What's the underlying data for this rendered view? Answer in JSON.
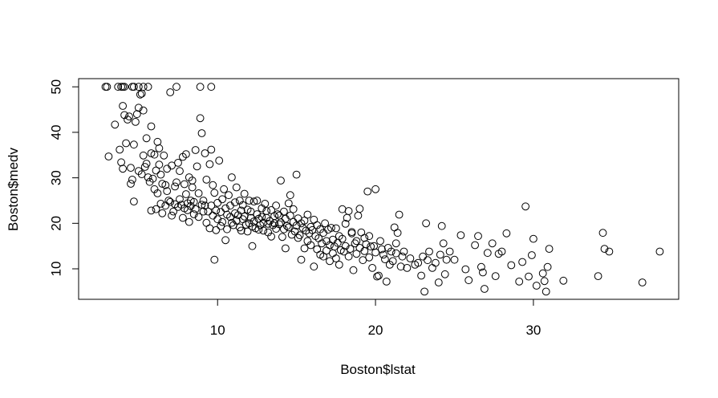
{
  "chart_data": {
    "type": "scatter",
    "title": "",
    "xlabel": "Boston$lstat",
    "ylabel": "Boston$medv",
    "xlim": [
      1.2,
      39.2
    ],
    "ylim": [
      3.3,
      51.8
    ],
    "x_ticks": [
      10,
      20,
      30
    ],
    "y_ticks": [
      10,
      20,
      30,
      40,
      50
    ],
    "grid": false,
    "legend": "none",
    "marker": "open-circle",
    "color": "#000000",
    "points": [
      [
        2.9,
        50
      ],
      [
        3.0,
        50
      ],
      [
        3.7,
        50
      ],
      [
        3.9,
        50
      ],
      [
        4.0,
        50
      ],
      [
        4.1,
        50
      ],
      [
        4.6,
        50
      ],
      [
        4.7,
        50
      ],
      [
        5.0,
        50
      ],
      [
        5.3,
        50
      ],
      [
        5.6,
        50
      ],
      [
        7.4,
        50
      ],
      [
        8.9,
        50
      ],
      [
        9.6,
        50
      ],
      [
        3.1,
        34.7
      ],
      [
        3.5,
        41.7
      ],
      [
        3.8,
        36.2
      ],
      [
        3.9,
        33.4
      ],
      [
        4.0,
        32.0
      ],
      [
        4.0,
        45.8
      ],
      [
        4.1,
        43.8
      ],
      [
        4.2,
        37.6
      ],
      [
        4.3,
        42.8
      ],
      [
        4.4,
        43.5
      ],
      [
        4.5,
        28.7
      ],
      [
        4.5,
        32.2
      ],
      [
        4.6,
        29.6
      ],
      [
        4.7,
        37.3
      ],
      [
        4.7,
        24.8
      ],
      [
        4.8,
        42.3
      ],
      [
        4.9,
        44.0
      ],
      [
        5.0,
        31.5
      ],
      [
        5.0,
        45.4
      ],
      [
        5.1,
        48.3
      ],
      [
        5.2,
        48.5
      ],
      [
        5.2,
        30.8
      ],
      [
        5.3,
        44.8
      ],
      [
        5.3,
        34.9
      ],
      [
        5.4,
        32.4
      ],
      [
        5.5,
        33.1
      ],
      [
        5.5,
        38.7
      ],
      [
        5.6,
        30.1
      ],
      [
        5.7,
        29.1
      ],
      [
        5.8,
        41.3
      ],
      [
        5.8,
        22.8
      ],
      [
        5.8,
        35.4
      ],
      [
        5.9,
        29.8
      ],
      [
        6.0,
        27.5
      ],
      [
        6.0,
        35.1
      ],
      [
        6.1,
        31.6
      ],
      [
        6.1,
        23.1
      ],
      [
        6.2,
        26.6
      ],
      [
        6.2,
        37.9
      ],
      [
        6.3,
        36.5
      ],
      [
        6.3,
        32.9
      ],
      [
        6.4,
        24.3
      ],
      [
        6.4,
        30.7
      ],
      [
        6.5,
        28.7
      ],
      [
        6.5,
        22.2
      ],
      [
        6.6,
        34.9
      ],
      [
        6.7,
        28.4
      ],
      [
        6.7,
        23.9
      ],
      [
        6.8,
        27.1
      ],
      [
        6.8,
        32.0
      ],
      [
        6.9,
        25.0
      ],
      [
        7.0,
        24.7
      ],
      [
        7.0,
        48.8
      ],
      [
        7.1,
        32.7
      ],
      [
        7.1,
        21.7
      ],
      [
        7.2,
        22.6
      ],
      [
        7.3,
        28.1
      ],
      [
        7.3,
        24.2
      ],
      [
        7.4,
        29.0
      ],
      [
        7.5,
        23.6
      ],
      [
        7.5,
        33.3
      ],
      [
        7.6,
        25.3
      ],
      [
        7.6,
        31.5
      ],
      [
        7.7,
        24.1
      ],
      [
        7.8,
        21.2
      ],
      [
        7.8,
        34.6
      ],
      [
        7.9,
        28.6
      ],
      [
        7.9,
        23.3
      ],
      [
        8.0,
        35.2
      ],
      [
        8.0,
        26.4
      ],
      [
        8.1,
        22.9
      ],
      [
        8.1,
        24.4
      ],
      [
        8.2,
        20.3
      ],
      [
        8.2,
        30.1
      ],
      [
        8.3,
        23.8
      ],
      [
        8.3,
        25.0
      ],
      [
        8.4,
        27.9
      ],
      [
        8.4,
        29.4
      ],
      [
        8.5,
        22.0
      ],
      [
        8.5,
        24.7
      ],
      [
        8.6,
        36.1
      ],
      [
        8.6,
        23.1
      ],
      [
        8.7,
        32.5
      ],
      [
        8.8,
        26.6
      ],
      [
        8.8,
        21.4
      ],
      [
        8.9,
        43.1
      ],
      [
        9.0,
        24.1
      ],
      [
        9.0,
        39.8
      ],
      [
        9.1,
        22.6
      ],
      [
        9.1,
        25.0
      ],
      [
        9.2,
        23.9
      ],
      [
        9.2,
        35.4
      ],
      [
        9.3,
        29.6
      ],
      [
        9.3,
        20.1
      ],
      [
        9.4,
        22.6
      ],
      [
        9.5,
        18.9
      ],
      [
        9.5,
        33.0
      ],
      [
        9.6,
        23.9
      ],
      [
        9.6,
        36.2
      ],
      [
        9.7,
        21.7
      ],
      [
        9.7,
        28.4
      ],
      [
        9.8,
        26.7
      ],
      [
        9.8,
        12.0
      ],
      [
        9.9,
        22.8
      ],
      [
        9.9,
        18.5
      ],
      [
        10.0,
        20.9
      ],
      [
        10.0,
        24.5
      ],
      [
        10.1,
        33.8
      ],
      [
        10.2,
        22.5
      ],
      [
        10.2,
        19.4
      ],
      [
        10.3,
        25.3
      ],
      [
        10.3,
        20.3
      ],
      [
        10.4,
        27.5
      ],
      [
        10.5,
        23.3
      ],
      [
        10.5,
        16.3
      ],
      [
        10.6,
        21.9
      ],
      [
        10.6,
        18.7
      ],
      [
        10.7,
        26.2
      ],
      [
        10.8,
        21.4
      ],
      [
        10.8,
        23.9
      ],
      [
        10.9,
        20.1
      ],
      [
        10.9,
        30.1
      ],
      [
        11.0,
        19.6
      ],
      [
        11.1,
        22.2
      ],
      [
        11.1,
        24.6
      ],
      [
        11.2,
        27.9
      ],
      [
        11.2,
        20.6
      ],
      [
        11.3,
        21.8
      ],
      [
        11.4,
        19.1
      ],
      [
        11.4,
        25.0
      ],
      [
        11.5,
        22.8
      ],
      [
        11.5,
        18.4
      ],
      [
        11.6,
        20.9
      ],
      [
        11.6,
        24.0
      ],
      [
        11.7,
        21.5
      ],
      [
        11.7,
        26.5
      ],
      [
        11.8,
        19.7
      ],
      [
        11.9,
        18.2
      ],
      [
        11.9,
        23.0
      ],
      [
        12.0,
        20.0
      ],
      [
        12.0,
        25.0
      ],
      [
        12.1,
        21.2
      ],
      [
        12.1,
        22.6
      ],
      [
        12.2,
        19.3
      ],
      [
        12.2,
        15.0
      ],
      [
        12.3,
        24.8
      ],
      [
        12.3,
        20.4
      ],
      [
        12.4,
        18.9
      ],
      [
        12.5,
        22.0
      ],
      [
        12.5,
        25.0
      ],
      [
        12.6,
        21.0
      ],
      [
        12.6,
        18.6
      ],
      [
        12.7,
        19.6
      ],
      [
        12.8,
        21.4
      ],
      [
        12.8,
        23.3
      ],
      [
        12.9,
        20.1
      ],
      [
        12.9,
        18.4
      ],
      [
        13.0,
        24.3
      ],
      [
        13.1,
        22.7
      ],
      [
        13.1,
        21.2
      ],
      [
        13.2,
        19.9
      ],
      [
        13.2,
        18.0
      ],
      [
        13.3,
        20.5
      ],
      [
        13.4,
        22.9
      ],
      [
        13.4,
        17.1
      ],
      [
        13.5,
        19.6
      ],
      [
        13.6,
        21.6
      ],
      [
        13.6,
        20.0
      ],
      [
        13.7,
        23.9
      ],
      [
        13.7,
        18.8
      ],
      [
        13.8,
        22.0
      ],
      [
        13.9,
        19.8
      ],
      [
        13.9,
        21.7
      ],
      [
        14.0,
        29.4
      ],
      [
        14.0,
        20.2
      ],
      [
        14.1,
        17.0
      ],
      [
        14.2,
        22.6
      ],
      [
        14.2,
        18.7
      ],
      [
        14.3,
        21.0
      ],
      [
        14.3,
        14.5
      ],
      [
        14.4,
        19.4
      ],
      [
        14.5,
        24.4
      ],
      [
        14.5,
        19.1
      ],
      [
        14.6,
        21.7
      ],
      [
        14.6,
        26.2
      ],
      [
        14.7,
        17.5
      ],
      [
        14.8,
        20.3
      ],
      [
        14.8,
        23.1
      ],
      [
        14.9,
        18.2
      ],
      [
        15.0,
        19.5
      ],
      [
        15.0,
        30.7
      ],
      [
        15.1,
        16.8
      ],
      [
        15.1,
        21.1
      ],
      [
        15.2,
        17.4
      ],
      [
        15.3,
        20.0
      ],
      [
        15.3,
        12.0
      ],
      [
        15.4,
        19.0
      ],
      [
        15.5,
        14.5
      ],
      [
        15.5,
        20.6
      ],
      [
        15.6,
        18.4
      ],
      [
        15.7,
        16.1
      ],
      [
        15.7,
        21.9
      ],
      [
        15.8,
        17.8
      ],
      [
        15.9,
        19.2
      ],
      [
        15.9,
        15.2
      ],
      [
        16.0,
        18.5
      ],
      [
        16.1,
        10.5
      ],
      [
        16.1,
        20.8
      ],
      [
        16.2,
        17.2
      ],
      [
        16.3,
        14.3
      ],
      [
        16.3,
        19.6
      ],
      [
        16.4,
        16.7
      ],
      [
        16.5,
        13.1
      ],
      [
        16.5,
        18.7
      ],
      [
        16.6,
        15.6
      ],
      [
        16.7,
        12.7
      ],
      [
        16.7,
        17.9
      ],
      [
        16.8,
        20.0
      ],
      [
        16.9,
        14.0
      ],
      [
        16.9,
        16.1
      ],
      [
        17.0,
        18.6
      ],
      [
        17.1,
        11.7
      ],
      [
        17.1,
        15.2
      ],
      [
        17.2,
        19.0
      ],
      [
        17.3,
        13.4
      ],
      [
        17.3,
        16.4
      ],
      [
        17.4,
        14.9
      ],
      [
        17.5,
        18.9
      ],
      [
        17.5,
        12.3
      ],
      [
        17.6,
        15.7
      ],
      [
        17.7,
        17.2
      ],
      [
        17.7,
        10.9
      ],
      [
        17.8,
        14.1
      ],
      [
        17.9,
        16.6
      ],
      [
        17.9,
        23.1
      ],
      [
        18.0,
        13.8
      ],
      [
        18.1,
        19.9
      ],
      [
        18.1,
        15.0
      ],
      [
        18.2,
        21.2
      ],
      [
        18.3,
        12.7
      ],
      [
        18.3,
        22.7
      ],
      [
        18.4,
        14.4
      ],
      [
        18.5,
        17.8
      ],
      [
        18.5,
        18.1
      ],
      [
        18.6,
        9.7
      ],
      [
        18.7,
        15.6
      ],
      [
        18.8,
        13.3
      ],
      [
        18.8,
        16.1
      ],
      [
        18.9,
        21.7
      ],
      [
        19.0,
        14.6
      ],
      [
        19.0,
        23.2
      ],
      [
        19.1,
        18.0
      ],
      [
        19.2,
        11.9
      ],
      [
        19.3,
        16.8
      ],
      [
        19.3,
        13.9
      ],
      [
        19.4,
        15.4
      ],
      [
        19.5,
        27.0
      ],
      [
        19.6,
        12.5
      ],
      [
        19.6,
        17.2
      ],
      [
        19.7,
        14.9
      ],
      [
        19.8,
        10.2
      ],
      [
        19.9,
        15.0
      ],
      [
        20.0,
        27.5
      ],
      [
        20.0,
        13.6
      ],
      [
        20.1,
        8.3
      ],
      [
        20.2,
        8.5
      ],
      [
        20.3,
        16.1
      ],
      [
        20.4,
        14.3
      ],
      [
        20.5,
        13.1
      ],
      [
        20.6,
        12.1
      ],
      [
        20.7,
        7.2
      ],
      [
        20.8,
        14.6
      ],
      [
        20.9,
        10.9
      ],
      [
        21.0,
        13.8
      ],
      [
        21.1,
        11.7
      ],
      [
        21.2,
        19.1
      ],
      [
        21.3,
        15.6
      ],
      [
        21.3,
        13.4
      ],
      [
        21.4,
        17.9
      ],
      [
        21.5,
        21.9
      ],
      [
        21.6,
        10.5
      ],
      [
        21.7,
        12.7
      ],
      [
        21.8,
        13.8
      ],
      [
        22.0,
        10.2
      ],
      [
        22.2,
        12.3
      ],
      [
        22.5,
        10.9
      ],
      [
        22.7,
        11.3
      ],
      [
        22.9,
        8.5
      ],
      [
        23.0,
        12.7
      ],
      [
        23.1,
        5.0
      ],
      [
        23.2,
        20.0
      ],
      [
        23.3,
        11.9
      ],
      [
        23.4,
        13.8
      ],
      [
        23.6,
        10.2
      ],
      [
        23.8,
        11.3
      ],
      [
        24.0,
        7.0
      ],
      [
        24.1,
        13.1
      ],
      [
        24.2,
        19.4
      ],
      [
        24.3,
        15.6
      ],
      [
        24.4,
        8.8
      ],
      [
        24.5,
        12.0
      ],
      [
        24.7,
        13.8
      ],
      [
        25.0,
        12.0
      ],
      [
        25.4,
        17.4
      ],
      [
        25.7,
        9.9
      ],
      [
        25.9,
        7.5
      ],
      [
        26.3,
        15.2
      ],
      [
        26.5,
        17.2
      ],
      [
        26.7,
        10.4
      ],
      [
        26.8,
        9.2
      ],
      [
        26.9,
        5.6
      ],
      [
        27.1,
        13.5
      ],
      [
        27.4,
        15.6
      ],
      [
        27.6,
        8.4
      ],
      [
        27.8,
        13.3
      ],
      [
        28.0,
        13.8
      ],
      [
        28.3,
        17.8
      ],
      [
        28.6,
        10.8
      ],
      [
        29.1,
        7.2
      ],
      [
        29.3,
        11.5
      ],
      [
        29.5,
        23.7
      ],
      [
        29.7,
        8.3
      ],
      [
        29.9,
        13.0
      ],
      [
        30.0,
        16.6
      ],
      [
        30.2,
        6.3
      ],
      [
        30.6,
        9.0
      ],
      [
        30.7,
        7.3
      ],
      [
        30.8,
        5.0
      ],
      [
        30.9,
        10.4
      ],
      [
        31.0,
        14.4
      ],
      [
        31.9,
        7.4
      ],
      [
        34.1,
        8.4
      ],
      [
        34.4,
        17.9
      ],
      [
        34.5,
        14.4
      ],
      [
        34.8,
        13.8
      ],
      [
        36.9,
        7.0
      ],
      [
        38.0,
        13.8
      ]
    ]
  }
}
